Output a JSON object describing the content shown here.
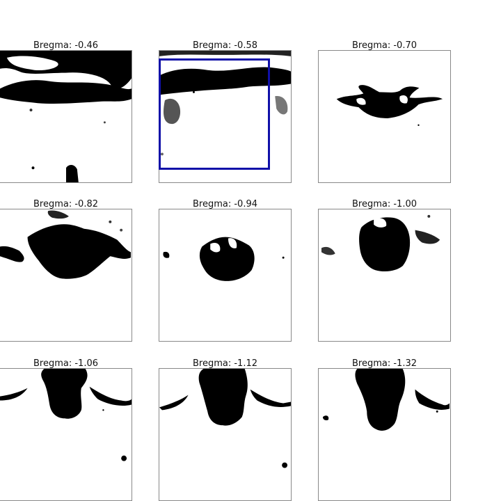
{
  "panels": [
    {
      "title": "Bregma: -0.46"
    },
    {
      "title": "Bregma: -0.58"
    },
    {
      "title": "Bregma: -0.70"
    },
    {
      "title": "Bregma: -0.82"
    },
    {
      "title": "Bregma: -0.94"
    },
    {
      "title": "Bregma: -1.00"
    },
    {
      "title": "Bregma: -1.06"
    },
    {
      "title": "Bregma: -1.12"
    },
    {
      "title": "Bregma: -1.32"
    }
  ],
  "selection": {
    "panel_index": 1,
    "color": "#1010a8"
  }
}
